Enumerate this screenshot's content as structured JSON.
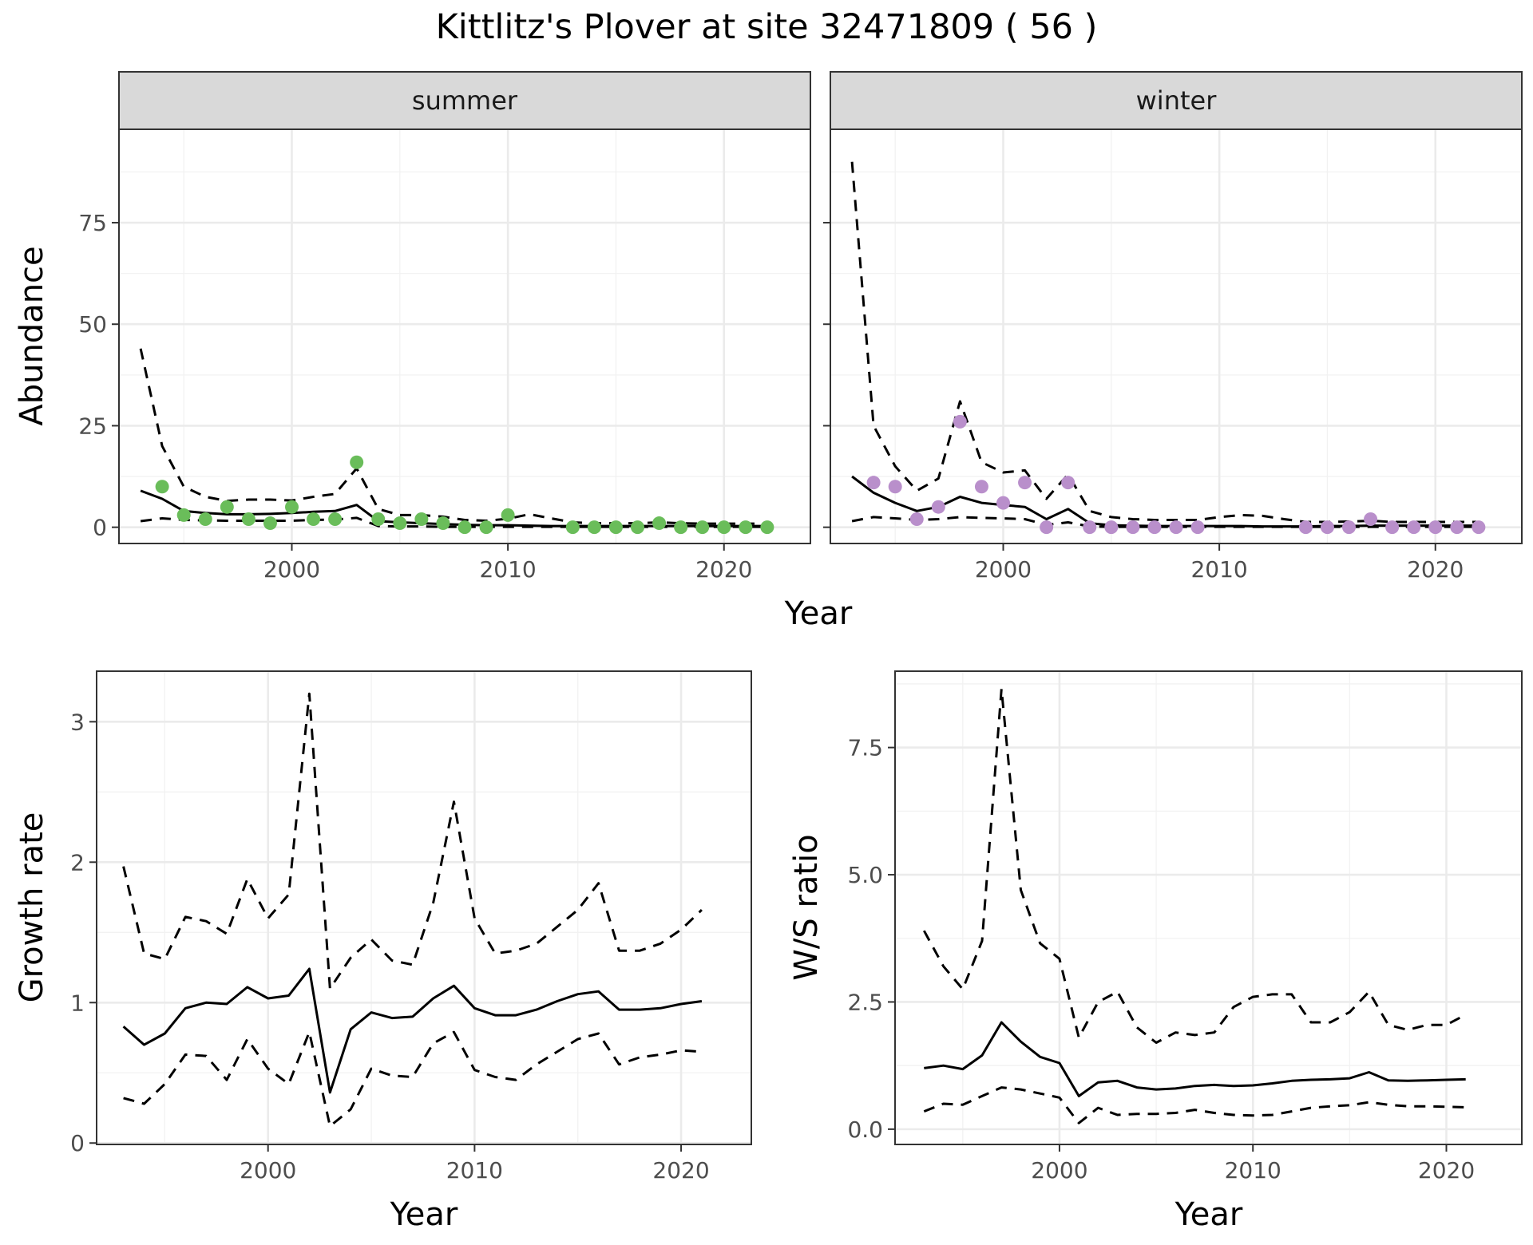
{
  "title": "Kittlitz's Plover at site 32471809 ( 56 )",
  "colors": {
    "summer_points": "#6abd5a",
    "winter_points": "#b98fcb",
    "lines": "#000000"
  },
  "chart_data": [
    {
      "id": "summer",
      "type": "line",
      "strip": "summer",
      "xlabel": "Year",
      "ylabel": "Abundance",
      "xlim": [
        1992,
        2024
      ],
      "ylim": [
        -4,
        98
      ],
      "xticks": [
        2000,
        2010,
        2020
      ],
      "yticks": [
        0,
        25,
        50,
        75
      ],
      "grid": true,
      "point_color": "#6abd5a",
      "estimate": {
        "x": [
          1993,
          1994,
          1995,
          1996,
          1997,
          1998,
          1999,
          2000,
          2001,
          2002,
          2003,
          2004,
          2005,
          2006,
          2007,
          2008,
          2009,
          2010,
          2011,
          2012,
          2013,
          2014,
          2015,
          2016,
          2017,
          2018,
          2019,
          2020,
          2021,
          2022
        ],
        "y": [
          9,
          7,
          4,
          3.5,
          3.2,
          3.2,
          3.3,
          3.5,
          3.8,
          4,
          5.5,
          1.5,
          1.2,
          1,
          0.8,
          0.6,
          0.5,
          0.5,
          0.4,
          0.3,
          0.3,
          0.3,
          0.3,
          0.3,
          0.3,
          0.3,
          0.3,
          0.3,
          0.3,
          0.3
        ]
      },
      "lower": {
        "x": [
          1993,
          1994,
          1995,
          1996,
          1997,
          1998,
          1999,
          2000,
          2001,
          2002,
          2003,
          2004,
          2005,
          2006,
          2007,
          2008,
          2009,
          2010,
          2011,
          2012,
          2013,
          2014,
          2015,
          2016,
          2017,
          2018,
          2019,
          2020,
          2021,
          2022
        ],
        "y": [
          1.5,
          2.2,
          1.8,
          1.7,
          1.6,
          1.6,
          1.6,
          1.6,
          1.8,
          1.9,
          2.3,
          0.3,
          0.2,
          0.2,
          0.1,
          0.1,
          0.1,
          0.1,
          0.1,
          0.1,
          0.1,
          0.1,
          0.1,
          0.1,
          0.1,
          0.1,
          0.1,
          0.1,
          0.1,
          0.1
        ]
      },
      "upper": {
        "x": [
          1993,
          1994,
          1995,
          1996,
          1997,
          1998,
          1999,
          2000,
          2001,
          2002,
          2003,
          2004,
          2005,
          2006,
          2007,
          2008,
          2009,
          2010,
          2011,
          2012,
          2013,
          2014,
          2015,
          2016,
          2017,
          2018,
          2019,
          2020,
          2021,
          2022
        ],
        "y": [
          44,
          20,
          10,
          7.5,
          6.5,
          6.8,
          6.8,
          6.6,
          7.5,
          8.2,
          14.5,
          4.5,
          3,
          3,
          2.6,
          1.8,
          1.6,
          2.1,
          3.2,
          2.2,
          1.2,
          1.0,
          1.0,
          1.0,
          1.2,
          1.0,
          0.9,
          0.9,
          0.9,
          0.9
        ]
      },
      "points": {
        "x": [
          1994,
          1995,
          1996,
          1997,
          1998,
          1999,
          2000,
          2001,
          2002,
          2003,
          2004,
          2005,
          2006,
          2007,
          2008,
          2009,
          2010,
          2013,
          2014,
          2015,
          2016,
          2017,
          2018,
          2019,
          2020,
          2021,
          2022
        ],
        "y": [
          10,
          3,
          2,
          5,
          2,
          1,
          5,
          2,
          2,
          16,
          2,
          1,
          2,
          1,
          0,
          0,
          3,
          0,
          0,
          0,
          0,
          1,
          0,
          0,
          0,
          0,
          0
        ]
      }
    },
    {
      "id": "winter",
      "type": "line",
      "strip": "winter",
      "xlabel": "Year",
      "ylabel": "",
      "xlim": [
        1992,
        2024
      ],
      "ylim": [
        -4,
        98
      ],
      "xticks": [
        2000,
        2010,
        2020
      ],
      "yticks": [
        0,
        25,
        50,
        75
      ],
      "grid": true,
      "point_color": "#b98fcb",
      "estimate": {
        "x": [
          1993,
          1994,
          1995,
          1996,
          1997,
          1998,
          1999,
          2000,
          2001,
          2002,
          2003,
          2004,
          2005,
          2006,
          2007,
          2008,
          2009,
          2010,
          2011,
          2012,
          2013,
          2014,
          2015,
          2016,
          2017,
          2018,
          2019,
          2020,
          2021,
          2022
        ],
        "y": [
          12.5,
          8.5,
          6,
          4,
          5,
          7.5,
          6,
          5.5,
          5,
          2,
          4.5,
          1,
          0.5,
          0.4,
          0.3,
          0.3,
          0.3,
          0.3,
          0.3,
          0.2,
          0.2,
          0.2,
          0.3,
          0.3,
          0.4,
          0.4,
          0.4,
          0.4,
          0.4,
          0.4
        ]
      },
      "lower": {
        "x": [
          1993,
          1994,
          1995,
          1996,
          1997,
          1998,
          1999,
          2000,
          2001,
          2002,
          2003,
          2004,
          2005,
          2006,
          2007,
          2008,
          2009,
          2010,
          2011,
          2012,
          2013,
          2014,
          2015,
          2016,
          2017,
          2018,
          2019,
          2020,
          2021,
          2022
        ],
        "y": [
          1.5,
          2.5,
          2.2,
          1.8,
          2.0,
          2.5,
          2.3,
          2.2,
          2.0,
          0.6,
          1.2,
          0.2,
          0.1,
          0.1,
          0.1,
          0.1,
          0.1,
          0.1,
          0.1,
          0.1,
          0.1,
          0.1,
          0.1,
          0.1,
          0.1,
          0.1,
          0.1,
          0.1,
          0.1,
          0.1
        ]
      },
      "upper": {
        "x": [
          1993,
          1994,
          1995,
          1996,
          1997,
          1998,
          1999,
          2000,
          2001,
          2002,
          2003,
          2004,
          2005,
          2006,
          2007,
          2008,
          2009,
          2010,
          2011,
          2012,
          2013,
          2014,
          2015,
          2016,
          2017,
          2018,
          2019,
          2020,
          2021,
          2022
        ],
        "y": [
          90,
          25,
          15,
          9,
          12,
          31,
          16,
          13.5,
          14,
          7,
          13,
          4,
          2.5,
          2,
          1.8,
          1.8,
          1.8,
          2.5,
          3,
          2.8,
          2,
          1.3,
          1.3,
          1.4,
          1.6,
          1.3,
          1.3,
          1.3,
          1.3,
          1.3
        ]
      },
      "points": {
        "x": [
          1994,
          1995,
          1996,
          1997,
          1998,
          1999,
          2000,
          2001,
          2002,
          2003,
          2004,
          2005,
          2006,
          2007,
          2008,
          2009,
          2014,
          2015,
          2016,
          2017,
          2018,
          2019,
          2020,
          2021,
          2022
        ],
        "y": [
          11,
          10,
          2,
          5,
          26,
          10,
          6,
          11,
          0,
          11,
          0,
          0,
          0,
          0,
          0,
          0,
          0,
          0,
          0,
          2,
          0,
          0,
          0,
          0,
          0
        ]
      }
    },
    {
      "id": "growth",
      "type": "line",
      "xlabel": "Year",
      "ylabel": "Growth rate",
      "xlim": [
        1991.7,
        2023.4
      ],
      "ylim": [
        -0.01,
        3.36
      ],
      "xticks": [
        2000,
        2010,
        2020
      ],
      "yticks": [
        0,
        1,
        2,
        3
      ],
      "grid": true,
      "estimate": {
        "x": [
          1993,
          1994,
          1995,
          1996,
          1997,
          1998,
          1999,
          2000,
          2001,
          2002,
          2003,
          2004,
          2005,
          2006,
          2007,
          2008,
          2009,
          2010,
          2011,
          2012,
          2013,
          2014,
          2015,
          2016,
          2017,
          2018,
          2019,
          2020,
          2021
        ],
        "y": [
          0.83,
          0.7,
          0.78,
          0.96,
          1.0,
          0.99,
          1.11,
          1.03,
          1.05,
          1.24,
          0.36,
          0.81,
          0.93,
          0.89,
          0.9,
          1.03,
          1.12,
          0.96,
          0.91,
          0.91,
          0.95,
          1.01,
          1.06,
          1.08,
          0.95,
          0.95,
          0.96,
          0.99,
          1.01
        ]
      },
      "lower": {
        "x": [
          1993,
          1994,
          1995,
          1996,
          1997,
          1998,
          1999,
          2000,
          2001,
          2002,
          2003,
          2004,
          2005,
          2006,
          2007,
          2008,
          2009,
          2010,
          2011,
          2012,
          2013,
          2014,
          2015,
          2016,
          2017,
          2018,
          2019,
          2020,
          2021
        ],
        "y": [
          0.32,
          0.28,
          0.42,
          0.63,
          0.62,
          0.45,
          0.74,
          0.53,
          0.42,
          0.79,
          0.12,
          0.24,
          0.53,
          0.48,
          0.47,
          0.71,
          0.79,
          0.52,
          0.47,
          0.45,
          0.56,
          0.65,
          0.74,
          0.78,
          0.56,
          0.61,
          0.63,
          0.66,
          0.65
        ]
      },
      "upper": {
        "x": [
          1993,
          1994,
          1995,
          1996,
          1997,
          1998,
          1999,
          2000,
          2001,
          2002,
          2003,
          2004,
          2005,
          2006,
          2007,
          2008,
          2009,
          2010,
          2011,
          2012,
          2013,
          2014,
          2015,
          2016,
          2017,
          2018,
          2019,
          2020,
          2021
        ],
        "y": [
          1.97,
          1.35,
          1.31,
          1.61,
          1.58,
          1.49,
          1.88,
          1.6,
          1.77,
          3.2,
          1.1,
          1.32,
          1.45,
          1.3,
          1.27,
          1.71,
          2.43,
          1.6,
          1.35,
          1.37,
          1.42,
          1.54,
          1.66,
          1.85,
          1.37,
          1.37,
          1.42,
          1.52,
          1.66
        ]
      }
    },
    {
      "id": "ratio",
      "type": "line",
      "xlabel": "Year",
      "ylabel": "W/S ratio",
      "xlim": [
        1991.5,
        2023.9
      ],
      "ylim": [
        -0.3,
        9.0
      ],
      "xticks": [
        2000,
        2010,
        2020
      ],
      "yticks": [
        0.0,
        2.5,
        5.0,
        7.5
      ],
      "ytick_labels": [
        "0.0",
        "2.5",
        "5.0",
        "7.5"
      ],
      "grid": true,
      "estimate": {
        "x": [
          1993,
          1994,
          1995,
          1996,
          1997,
          1998,
          1999,
          2000,
          2001,
          2002,
          2003,
          2004,
          2005,
          2006,
          2007,
          2008,
          2009,
          2010,
          2011,
          2012,
          2013,
          2014,
          2015,
          2016,
          2017,
          2018,
          2019,
          2020,
          2021
        ],
        "y": [
          1.2,
          1.25,
          1.18,
          1.45,
          2.1,
          1.72,
          1.42,
          1.3,
          0.65,
          0.92,
          0.95,
          0.82,
          0.78,
          0.8,
          0.85,
          0.87,
          0.85,
          0.86,
          0.9,
          0.95,
          0.97,
          0.98,
          1.0,
          1.12,
          0.96,
          0.95,
          0.96,
          0.97,
          0.98
        ]
      },
      "lower": {
        "x": [
          1993,
          1994,
          1995,
          1996,
          1997,
          1998,
          1999,
          2000,
          2001,
          2002,
          2003,
          2004,
          2005,
          2006,
          2007,
          2008,
          2009,
          2010,
          2011,
          2012,
          2013,
          2014,
          2015,
          2016,
          2017,
          2018,
          2019,
          2020,
          2021
        ],
        "y": [
          0.35,
          0.5,
          0.48,
          0.65,
          0.82,
          0.78,
          0.7,
          0.62,
          0.12,
          0.42,
          0.28,
          0.3,
          0.3,
          0.32,
          0.38,
          0.32,
          0.28,
          0.27,
          0.28,
          0.35,
          0.42,
          0.45,
          0.47,
          0.53,
          0.48,
          0.45,
          0.45,
          0.44,
          0.43
        ]
      },
      "upper": {
        "x": [
          1993,
          1994,
          1995,
          1996,
          1997,
          1998,
          1999,
          2000,
          2001,
          2002,
          2003,
          2004,
          2005,
          2006,
          2007,
          2008,
          2009,
          2010,
          2011,
          2012,
          2013,
          2014,
          2015,
          2016,
          2017,
          2018,
          2019,
          2020,
          2021
        ],
        "y": [
          3.9,
          3.2,
          2.75,
          3.7,
          8.65,
          4.7,
          3.65,
          3.35,
          1.8,
          2.5,
          2.7,
          2.0,
          1.7,
          1.9,
          1.85,
          1.9,
          2.4,
          2.6,
          2.65,
          2.65,
          2.1,
          2.1,
          2.3,
          2.7,
          2.05,
          1.95,
          2.05,
          2.05,
          2.25
        ]
      }
    }
  ]
}
